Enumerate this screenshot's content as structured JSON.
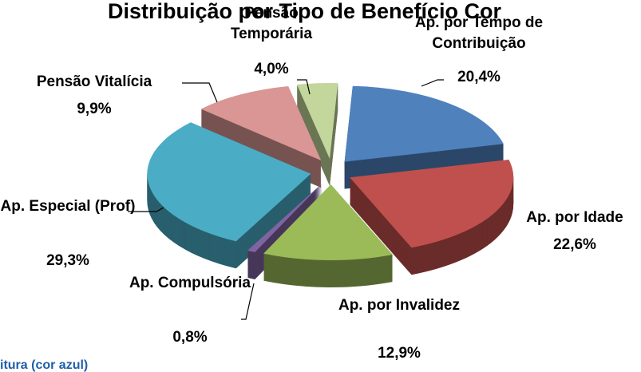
{
  "chart_data": {
    "type": "pie",
    "title": "Distribuição por Tipo de Benefício Cor",
    "note": "itura (cor azul)",
    "categories": [
      "Ap. por Tempo de Contribuição",
      "Ap. por Idade",
      "Ap. por Invalidez",
      "Ap. Compulsória",
      "Ap. Especial (Prof)",
      "Pensão Vitalícia",
      "Pensão Temporária"
    ],
    "values": [
      20.4,
      22.6,
      12.9,
      0.8,
      29.3,
      9.9,
      4.0
    ],
    "value_labels": [
      "20,4%",
      "22,6%",
      "12,9%",
      "0,8%",
      "29,3%",
      "9,9%",
      "4,0%"
    ],
    "colors": [
      "#4f81bd",
      "#c0504d",
      "#9bbb59",
      "#8064a2",
      "#4bacc6",
      "#d99694",
      "#c3d69b"
    ]
  }
}
